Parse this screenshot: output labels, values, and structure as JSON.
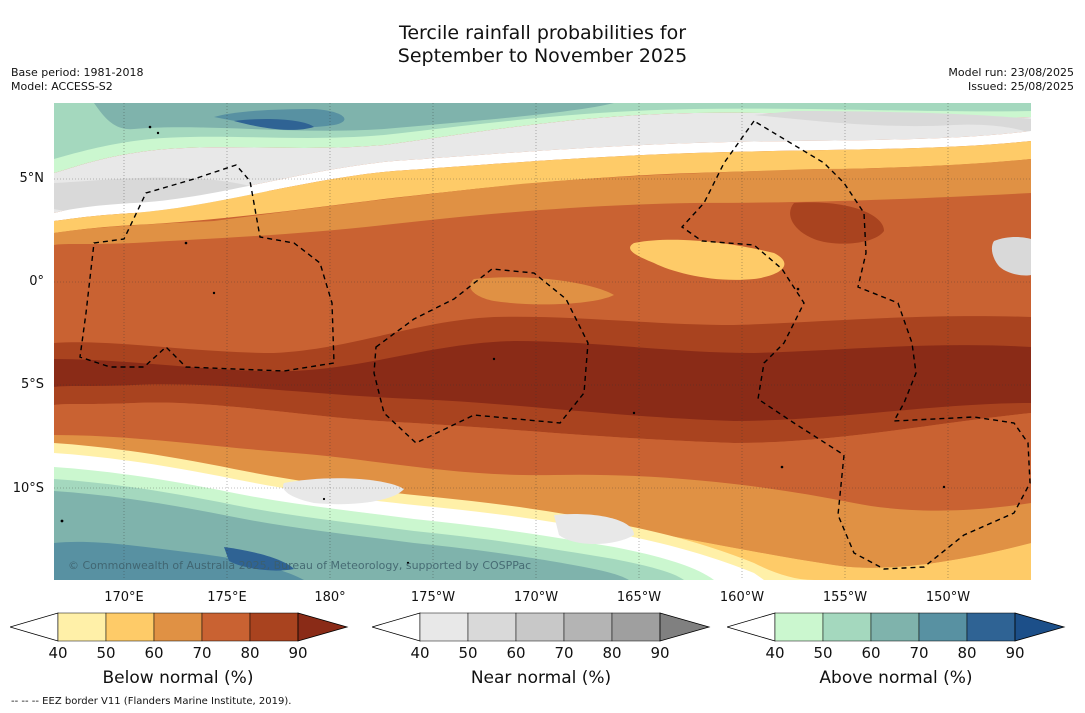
{
  "title_line1": "Tercile rainfall probabilities for",
  "title_line2": "September to November 2025",
  "base_period": "Base period: 1981-2018",
  "model": "Model: ACCESS-S2",
  "model_run": "Model run: 23/08/2025",
  "issued": "Issued: 25/08/2025",
  "lat_labels": [
    "5°N",
    "0°",
    "5°S",
    "10°S"
  ],
  "lon_labels": [
    "170°E",
    "175°E",
    "180°",
    "175°W",
    "170°W",
    "165°W",
    "160°W",
    "155°W",
    "150°W"
  ],
  "copyright": "© Commonwealth of Australia 2025, Bureau of Meteorology, supported by COSPPac",
  "footnote": "--  --  -- EEZ border V11 (Flanders Marine Institute, 2019).",
  "colorbars": [
    {
      "title": "Below normal (%)",
      "ticks": [
        "40",
        "50",
        "60",
        "70",
        "80",
        "90"
      ],
      "colors": [
        "#ffffff",
        "#fff0a8",
        "#fecb68",
        "#e09144",
        "#c96232",
        "#a9431f",
        "#8a2b17"
      ]
    },
    {
      "title": "Near normal (%)",
      "ticks": [
        "40",
        "50",
        "60",
        "70",
        "80",
        "90"
      ],
      "colors": [
        "#ffffff",
        "#e8e8e8",
        "#d9d9d9",
        "#c8c8c8",
        "#b4b4b4",
        "#9f9f9f",
        "#808080"
      ]
    },
    {
      "title": "Above normal (%)",
      "ticks": [
        "40",
        "50",
        "60",
        "70",
        "80",
        "90"
      ],
      "colors": [
        "#ffffff",
        "#cbf7cf",
        "#a4d8be",
        "#7fb3ac",
        "#5891a2",
        "#2f6394",
        "#1c4f89"
      ]
    }
  ]
}
